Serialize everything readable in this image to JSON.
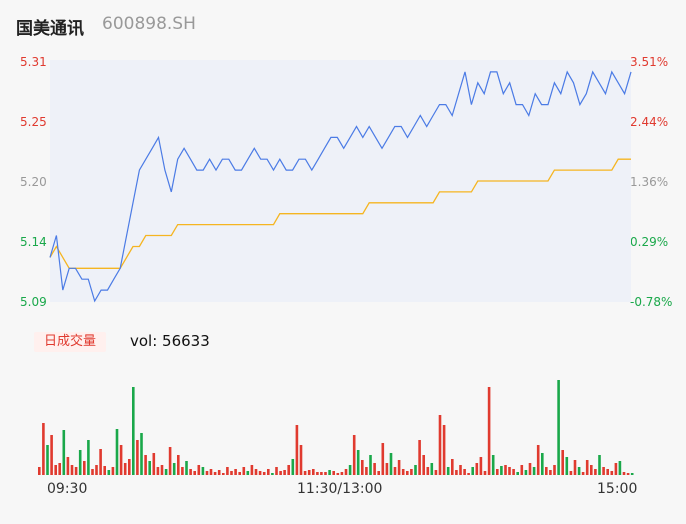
{
  "header": {
    "name": "国美通讯",
    "code": "600898.SH"
  },
  "colors": {
    "up": "#e03a2f",
    "down": "#1aa84a",
    "price_line": "#4b7be5",
    "avg_line": "#f5b521",
    "neutral": "#999999"
  },
  "volume": {
    "badge": "日成交量",
    "text": "vol: 56633"
  },
  "chart_data": [
    {
      "type": "line",
      "title": "",
      "y_left_ticks": [
        "5.31",
        "5.25",
        "5.20",
        "5.14",
        "5.09"
      ],
      "y_right_ticks": [
        "3.51%",
        "2.44%",
        "1.36%",
        "0.29%",
        "-0.78%"
      ],
      "ylim": [
        5.09,
        5.31
      ],
      "x_ticks": [
        "09:30",
        "11:30/13:00",
        "15:00"
      ],
      "series": [
        {
          "name": "",
          "values": [
            5.13,
            5.15,
            5.1,
            5.12,
            5.12,
            5.11,
            5.11,
            5.09,
            5.1,
            5.1,
            5.11,
            5.12,
            5.15,
            5.18,
            5.21,
            5.22,
            5.23,
            5.24,
            5.21,
            5.19,
            5.22,
            5.23,
            5.22,
            5.21,
            5.21,
            5.22,
            5.21,
            5.22,
            5.22,
            5.21,
            5.21,
            5.22,
            5.23,
            5.22,
            5.22,
            5.21,
            5.22,
            5.21,
            5.21,
            5.22,
            5.22,
            5.21,
            5.22,
            5.23,
            5.24,
            5.24,
            5.23,
            5.24,
            5.25,
            5.24,
            5.25,
            5.24,
            5.23,
            5.24,
            5.25,
            5.25,
            5.24,
            5.25,
            5.26,
            5.25,
            5.26,
            5.27,
            5.27,
            5.26,
            5.28,
            5.3,
            5.27,
            5.29,
            5.28,
            5.3,
            5.3,
            5.28,
            5.29,
            5.27,
            5.27,
            5.26,
            5.28,
            5.27,
            5.27,
            5.29,
            5.28,
            5.3,
            5.29,
            5.27,
            5.28,
            5.3,
            5.29,
            5.28,
            5.3,
            5.29,
            5.28,
            5.3
          ]
        },
        {
          "name": "",
          "values": [
            5.13,
            5.14,
            5.13,
            5.12,
            5.12,
            5.12,
            5.12,
            5.12,
            5.12,
            5.12,
            5.12,
            5.12,
            5.13,
            5.14,
            5.14,
            5.15,
            5.15,
            5.15,
            5.15,
            5.15,
            5.16,
            5.16,
            5.16,
            5.16,
            5.16,
            5.16,
            5.16,
            5.16,
            5.16,
            5.16,
            5.16,
            5.16,
            5.16,
            5.16,
            5.16,
            5.16,
            5.17,
            5.17,
            5.17,
            5.17,
            5.17,
            5.17,
            5.17,
            5.17,
            5.17,
            5.17,
            5.17,
            5.17,
            5.17,
            5.17,
            5.18,
            5.18,
            5.18,
            5.18,
            5.18,
            5.18,
            5.18,
            5.18,
            5.18,
            5.18,
            5.18,
            5.19,
            5.19,
            5.19,
            5.19,
            5.19,
            5.19,
            5.2,
            5.2,
            5.2,
            5.2,
            5.2,
            5.2,
            5.2,
            5.2,
            5.2,
            5.2,
            5.2,
            5.2,
            5.21,
            5.21,
            5.21,
            5.21,
            5.21,
            5.21,
            5.21,
            5.21,
            5.21,
            5.21,
            5.22,
            5.22,
            5.22
          ]
        }
      ]
    },
    {
      "type": "bar",
      "title": "",
      "ylabel": "",
      "values": [
        8,
        52,
        30,
        40,
        10,
        12,
        45,
        18,
        10,
        8,
        25,
        14,
        35,
        6,
        10,
        26,
        9,
        5,
        8,
        46,
        30,
        12,
        16,
        88,
        35,
        42,
        20,
        14,
        22,
        8,
        10,
        6,
        28,
        12,
        20,
        8,
        14,
        6,
        4,
        10,
        8,
        4,
        6,
        3,
        5,
        2,
        8,
        4,
        6,
        3,
        8,
        4,
        10,
        6,
        4,
        3,
        6,
        2,
        8,
        4,
        5,
        10,
        16,
        50,
        30,
        4,
        5,
        6,
        3,
        3,
        3,
        5,
        4,
        2,
        3,
        6,
        10,
        40,
        25,
        15,
        8,
        20,
        12,
        4,
        32,
        12,
        22,
        8,
        15,
        6,
        4,
        6,
        10,
        35,
        20,
        8,
        12,
        5,
        60,
        50,
        8,
        16,
        5,
        10,
        6,
        2,
        8,
        12,
        18,
        4,
        88,
        20,
        6,
        9,
        10,
        8,
        6,
        3,
        10,
        5,
        12,
        8,
        30,
        22,
        8,
        5,
        10,
        95,
        25,
        18,
        4,
        15,
        8,
        3,
        15,
        10,
        6,
        20,
        8,
        6,
        4,
        12,
        14,
        3,
        2,
        2
      ],
      "colors": [
        "r",
        "r",
        "g",
        "r",
        "r",
        "r",
        "g",
        "r",
        "r",
        "r",
        "g",
        "r",
        "g",
        "r",
        "r",
        "r",
        "r",
        "g",
        "r",
        "g",
        "r",
        "r",
        "r",
        "g",
        "r",
        "g",
        "r",
        "g",
        "r",
        "r",
        "r",
        "g",
        "r",
        "g",
        "r",
        "r",
        "g",
        "r",
        "r",
        "r",
        "g",
        "r",
        "r",
        "r",
        "r",
        "r",
        "r",
        "r",
        "r",
        "r",
        "r",
        "g",
        "r",
        "r",
        "r",
        "r",
        "r",
        "g",
        "r",
        "r",
        "r",
        "r",
        "g",
        "r",
        "r",
        "r",
        "r",
        "r",
        "r",
        "r",
        "r",
        "g",
        "r",
        "r",
        "r",
        "r",
        "g",
        "r",
        "g",
        "r",
        "r",
        "g",
        "r",
        "r",
        "r",
        "r",
        "g",
        "r",
        "r",
        "r",
        "r",
        "r",
        "g",
        "r",
        "r",
        "r",
        "g",
        "r",
        "r",
        "r",
        "g",
        "r",
        "r",
        "r",
        "r",
        "r",
        "g",
        "r",
        "r",
        "r",
        "r",
        "g",
        "r",
        "g",
        "r",
        "r",
        "r",
        "g",
        "r",
        "g",
        "r",
        "g",
        "r",
        "g",
        "r",
        "r",
        "r",
        "g",
        "r",
        "g",
        "r",
        "r",
        "g",
        "r",
        "r",
        "r",
        "r",
        "g",
        "r",
        "r",
        "r",
        "r",
        "g",
        "r",
        "r",
        "g"
      ]
    }
  ]
}
